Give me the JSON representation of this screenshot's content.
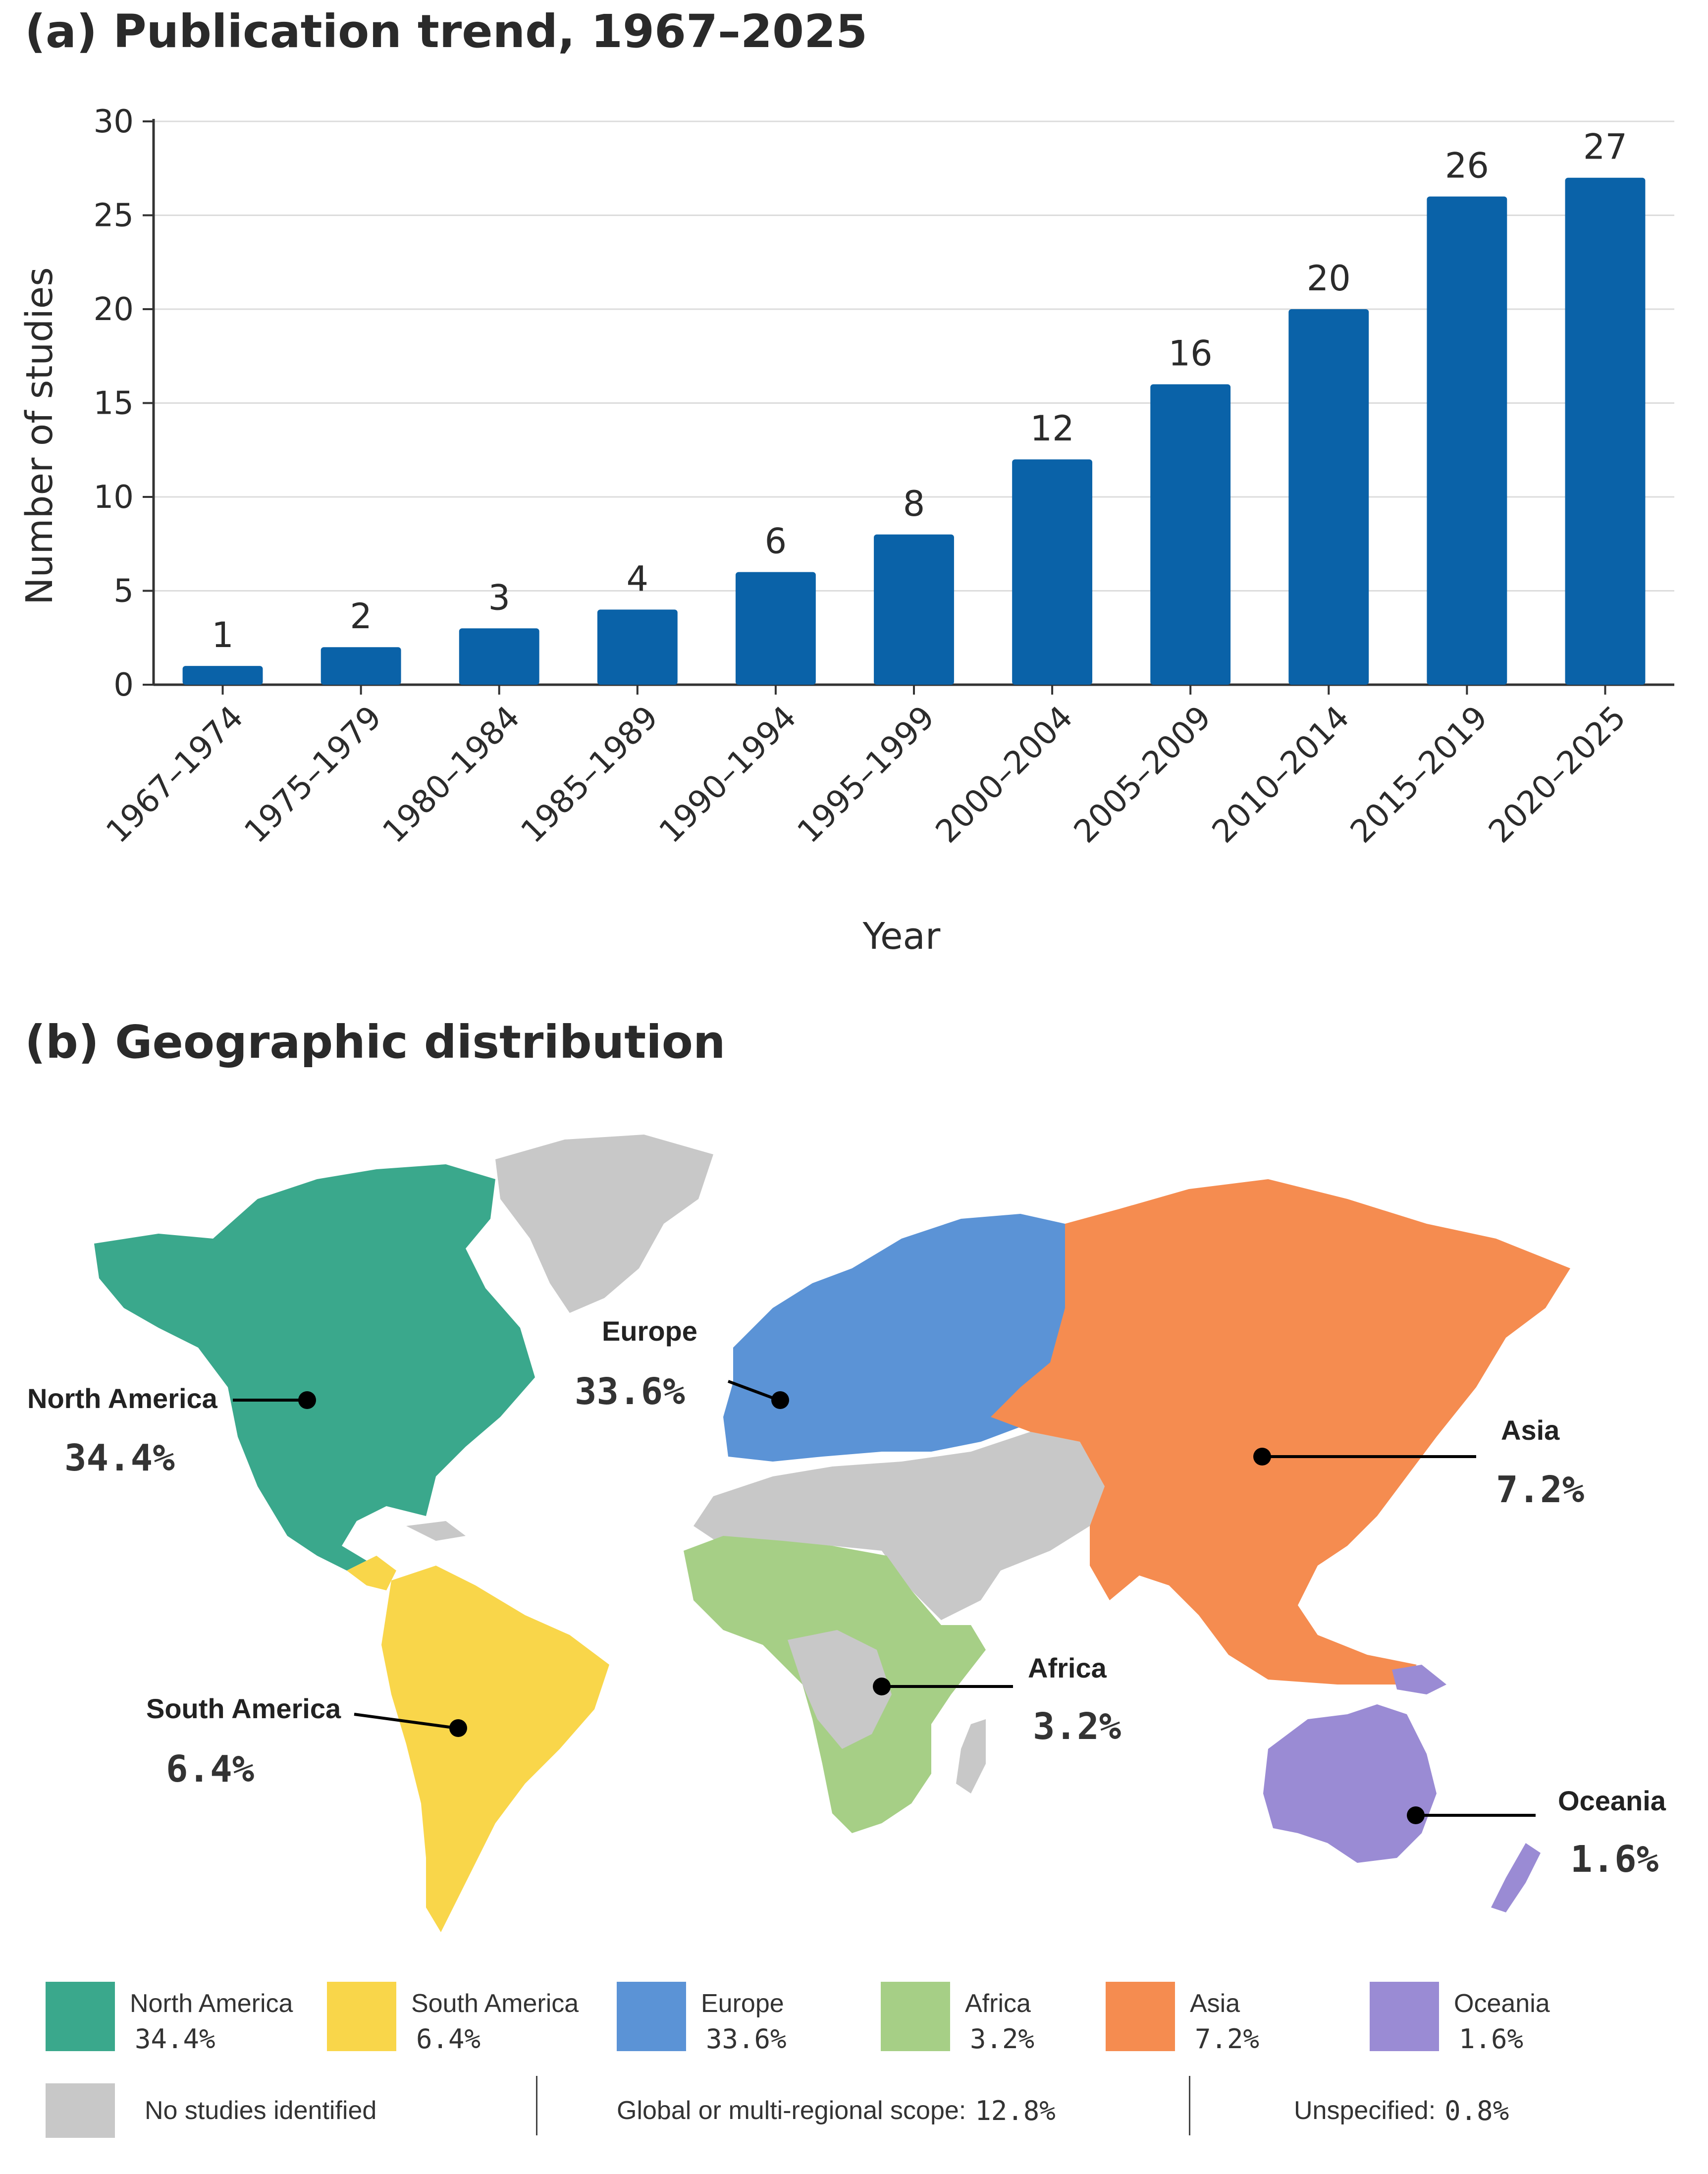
{
  "panel_a": {
    "title": "(a) Publication trend, 1967–2025"
  },
  "panel_b": {
    "title": "(b) Geographic distribution"
  },
  "chart_data": {
    "type": "bar",
    "title": "(a) Publication trend, 1967–2025",
    "xlabel": "Year",
    "ylabel": "Number of studies",
    "ylim": [
      0,
      30
    ],
    "yticks": [
      0,
      5,
      10,
      15,
      20,
      25,
      30
    ],
    "grid": "horizontal",
    "bar_color": "#0a62a8",
    "categories": [
      "1967–1974",
      "1975–1979",
      "1980–1984",
      "1985–1989",
      "1990–1994",
      "1995–1999",
      "2000–2004",
      "2005–2009",
      "2010–2014",
      "2015–2019",
      "2020–2025"
    ],
    "values": [
      1,
      2,
      3,
      4,
      6,
      8,
      12,
      16,
      20,
      26,
      27
    ]
  },
  "map": {
    "regions": [
      {
        "id": "north-america",
        "name": "North America",
        "pct": "34.4%",
        "color": "#3aa88c"
      },
      {
        "id": "south-america",
        "name": "South America",
        "pct": "6.4%",
        "color": "#f9d64a"
      },
      {
        "id": "europe",
        "name": "Europe",
        "pct": "33.6%",
        "color": "#5b93d6"
      },
      {
        "id": "africa",
        "name": "Africa",
        "pct": "3.2%",
        "color": "#a6cf86"
      },
      {
        "id": "asia",
        "name": "Asia",
        "pct": "7.2%",
        "color": "#f58c50"
      },
      {
        "id": "oceania",
        "name": "Oceania",
        "pct": "1.6%",
        "color": "#9a8bd4"
      }
    ],
    "no_data_color": "#c8c8c8"
  },
  "legend": {
    "no_studies": "No studies identified",
    "global_label": "Global or multi-regional scope:",
    "global_value": "12.8%",
    "unspecified_label": "Unspecified:",
    "unspecified_value": "0.8%"
  }
}
